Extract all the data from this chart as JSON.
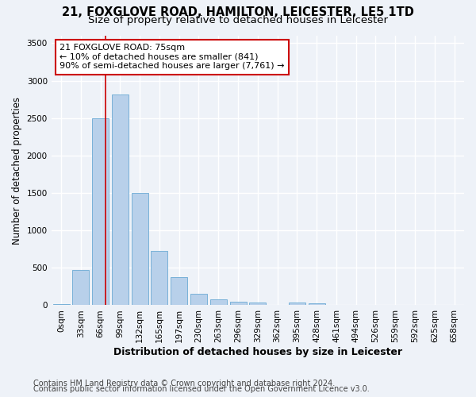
{
  "title_line1": "21, FOXGLOVE ROAD, HAMILTON, LEICESTER, LE5 1TD",
  "title_line2": "Size of property relative to detached houses in Leicester",
  "xlabel": "Distribution of detached houses by size in Leicester",
  "ylabel": "Number of detached properties",
  "categories": [
    "0sqm",
    "33sqm",
    "66sqm",
    "99sqm",
    "132sqm",
    "165sqm",
    "197sqm",
    "230sqm",
    "263sqm",
    "296sqm",
    "329sqm",
    "362sqm",
    "395sqm",
    "428sqm",
    "461sqm",
    "494sqm",
    "526sqm",
    "559sqm",
    "592sqm",
    "625sqm",
    "658sqm"
  ],
  "values": [
    20,
    470,
    2500,
    2820,
    1500,
    730,
    380,
    155,
    75,
    45,
    35,
    5,
    35,
    25,
    0,
    0,
    0,
    0,
    0,
    0,
    0
  ],
  "bar_color_normal": "#b8d0ea",
  "bar_color_edge": "#6aaad4",
  "bar_width": 0.85,
  "vline_x_index": 2.27,
  "vline_color": "#cc0000",
  "annotation_text": "21 FOXGLOVE ROAD: 75sqm\n← 10% of detached houses are smaller (841)\n90% of semi-detached houses are larger (7,761) →",
  "annotation_box_color": "#ffffff",
  "annotation_box_edge": "#cc0000",
  "ylim": [
    0,
    3600
  ],
  "yticks": [
    0,
    500,
    1000,
    1500,
    2000,
    2500,
    3000,
    3500
  ],
  "footer_line1": "Contains HM Land Registry data © Crown copyright and database right 2024.",
  "footer_line2": "Contains public sector information licensed under the Open Government Licence v3.0.",
  "bg_color": "#eef2f8",
  "plot_bg_color": "#eef2f8",
  "grid_color": "#ffffff",
  "title_fontsize": 10.5,
  "subtitle_fontsize": 9.5,
  "xlabel_fontsize": 9,
  "ylabel_fontsize": 8.5,
  "tick_fontsize": 7.5,
  "annotation_fontsize": 8,
  "footer_fontsize": 7
}
